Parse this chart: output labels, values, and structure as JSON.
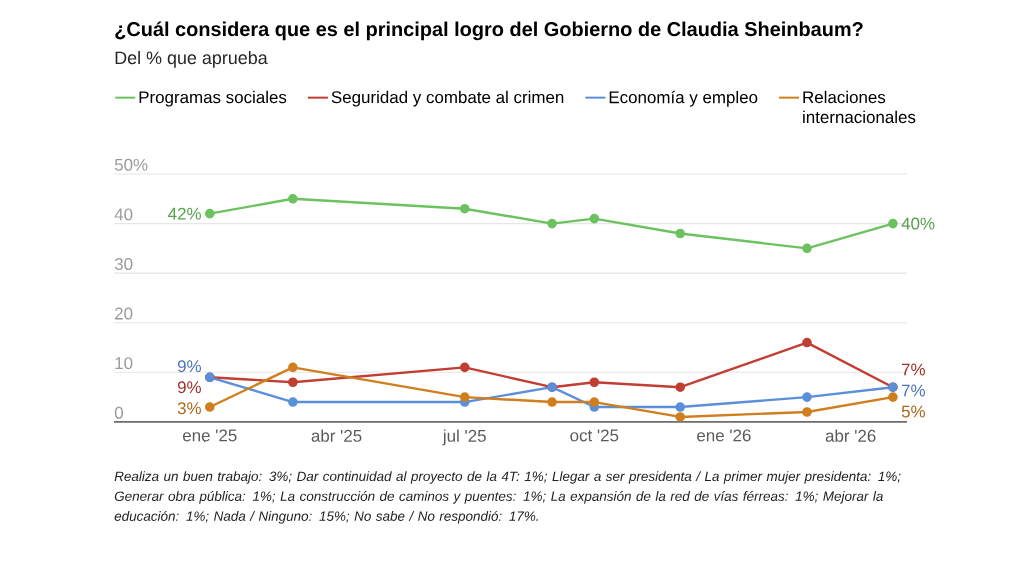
{
  "chart_data": {
    "type": "line",
    "title": "¿Cuál considera que es el principal logro del Gobierno de Claudia Sheinbaum?",
    "subtitle": "Del % que aprueba",
    "x": [
      "2025-01",
      "2025-03",
      "2025-07",
      "2025-09",
      "2025-10",
      "2025-12",
      "2026-03",
      "2026-05"
    ],
    "series": [
      {
        "name": "Programas sociales",
        "color": "#6cc25f",
        "values": [
          42,
          45,
          43,
          40,
          41,
          38,
          35,
          40
        ],
        "value_labels": [
          "42%",
          null,
          null,
          null,
          null,
          null,
          null,
          "40%"
        ]
      },
      {
        "name": "Seguridad y combate al crimen",
        "color": "#c23d32",
        "values": [
          9,
          8,
          11,
          7,
          8,
          7,
          16,
          7
        ],
        "value_labels": [
          "9%",
          null,
          null,
          null,
          null,
          null,
          null,
          "7%"
        ]
      },
      {
        "name": "Economía y empleo",
        "color": "#5b8fd9",
        "values": [
          9,
          4,
          4,
          7,
          3,
          3,
          5,
          7
        ],
        "value_labels": [
          "9%",
          null,
          null,
          null,
          null,
          null,
          null,
          "7%"
        ]
      },
      {
        "name": "Relaciones internacionales",
        "color": "#d07e1e",
        "values": [
          3,
          11,
          5,
          4,
          4,
          1,
          2,
          5
        ],
        "value_labels": [
          "3%",
          null,
          null,
          null,
          null,
          null,
          null,
          "5%"
        ]
      }
    ],
    "xlim": [
      "2024-10-25",
      "2026-05-11"
    ],
    "xticks": [
      {
        "value": "2025-01",
        "label": "ene '25"
      },
      {
        "value": "2025-04",
        "label": "abr '25"
      },
      {
        "value": "2025-07",
        "label": "jul '25"
      },
      {
        "value": "2025-10",
        "label": "oct '25"
      },
      {
        "value": "2026-01",
        "label": "ene '26"
      },
      {
        "value": "2026-04",
        "label": "abr '26"
      }
    ],
    "ylim": [
      0,
      50
    ],
    "yticks": [
      0,
      10,
      20,
      30,
      40,
      {
        "value": 50,
        "label": "50%"
      }
    ],
    "grid": "y",
    "legend": "top",
    "marker": "circle",
    "line_style": "solid",
    "annotations": [
      "Realiza un buen trabajo: 3%; Dar continuidad al proyecto de la 4T: 1%; Llegar a ser presidenta / La primer mujer presidenta: 1%; Generar obra pública: 1%; La construcción de caminos y puentes: 1%; La expansión de la red de vías férreas: 1%; Mejorar la educación: 1%; Nada / Ninguno: 15%; No sabe / No respondió: 17%."
    ]
  }
}
